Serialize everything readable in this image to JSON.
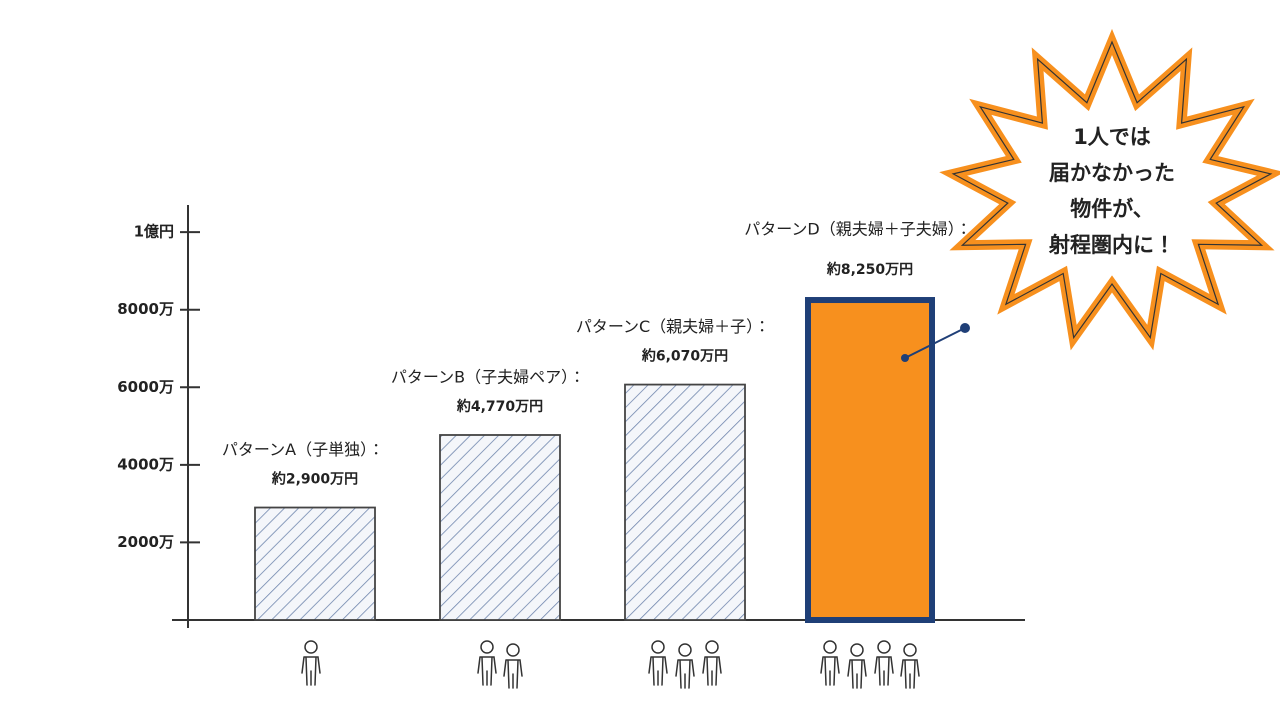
{
  "chart_data": {
    "type": "bar",
    "categories": [
      "パターンA（子単独）：",
      "パターンB（子夫婦ペア）：",
      "パターンC（親夫婦＋子）：",
      "パターンD（親夫婦＋子夫婦）："
    ],
    "values": [
      2900,
      4770,
      6070,
      8250
    ],
    "value_labels": [
      "約2,900万円",
      "約4,770万円",
      "約6,070万円",
      "約8,250万円"
    ],
    "colors": [
      "#6f86ad",
      "#6f86ad",
      "#6f86ad",
      "#f7901e"
    ],
    "hatched": [
      true,
      true,
      true,
      false
    ],
    "ylim": [
      0,
      10700
    ],
    "yticks": [
      {
        "value": 2000,
        "label": "2000万"
      },
      {
        "value": 4000,
        "label": "4000万"
      },
      {
        "value": 6000,
        "label": "6000万"
      },
      {
        "value": 8000,
        "label": "8000万"
      },
      {
        "value": 10000,
        "label": "1億円"
      }
    ],
    "annotation": [
      "1人では",
      "届かなかった",
      "物件が、",
      "射程圏内に！"
    ]
  }
}
